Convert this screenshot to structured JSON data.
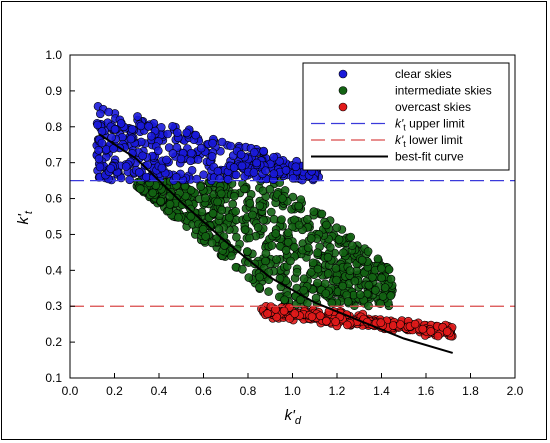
{
  "chart_data": {
    "type": "scatter",
    "xlabel_main": "k'",
    "xlabel_sub": "d",
    "ylabel_main": "k'",
    "ylabel_sub": "t",
    "xlim": [
      0.0,
      2.0
    ],
    "ylim": [
      0.1,
      1.0
    ],
    "x_ticks": [
      "0.0",
      "0.2",
      "0.4",
      "0.6",
      "0.8",
      "1.0",
      "1.2",
      "1.4",
      "1.6",
      "1.8",
      "2.0"
    ],
    "y_ticks": [
      "0.1",
      "0.2",
      "0.3",
      "0.4",
      "0.5",
      "0.6",
      "0.7",
      "0.8",
      "0.9",
      "1.0"
    ],
    "grid": false,
    "legend_position": "top-right",
    "series": [
      {
        "name": "clear skies",
        "color": "#1a1ad9",
        "region": {
          "y_range": [
            0.65,
            0.89
          ],
          "x_range": [
            0.12,
            1.12
          ]
        },
        "points_sample": [
          [
            0.15,
            0.85
          ],
          [
            0.2,
            0.82
          ],
          [
            0.3,
            0.86
          ],
          [
            0.4,
            0.78
          ],
          [
            0.5,
            0.76
          ],
          [
            0.6,
            0.74
          ],
          [
            0.7,
            0.72
          ],
          [
            0.8,
            0.7
          ],
          [
            0.9,
            0.69
          ],
          [
            1.0,
            0.68
          ],
          [
            1.1,
            0.66
          ]
        ]
      },
      {
        "name": "intermediate skies",
        "color": "#136313",
        "region": {
          "y_range": [
            0.3,
            0.65
          ],
          "x_range": [
            0.3,
            1.45
          ]
        },
        "points_sample": [
          [
            0.35,
            0.62
          ],
          [
            0.5,
            0.55
          ],
          [
            0.6,
            0.48
          ],
          [
            0.7,
            0.42
          ],
          [
            0.8,
            0.36
          ],
          [
            1.0,
            0.58
          ],
          [
            1.1,
            0.5
          ],
          [
            1.2,
            0.45
          ],
          [
            1.3,
            0.52
          ],
          [
            1.4,
            0.38
          ]
        ]
      },
      {
        "name": "overcast skies",
        "color": "#e21b1b",
        "region": {
          "y_range": [
            0.19,
            0.3
          ],
          "x_range": [
            0.85,
            1.72
          ]
        },
        "points_sample": [
          [
            0.9,
            0.29
          ],
          [
            1.0,
            0.27
          ],
          [
            1.1,
            0.26
          ],
          [
            1.2,
            0.25
          ],
          [
            1.3,
            0.26
          ],
          [
            1.4,
            0.24
          ],
          [
            1.5,
            0.23
          ],
          [
            1.6,
            0.22
          ],
          [
            1.7,
            0.24
          ]
        ]
      }
    ],
    "reference_lines": [
      {
        "name": "upper limit",
        "name_main": "k'",
        "name_sub": "t",
        "y": 0.65,
        "color": "#3a3adb",
        "style": "dashed"
      },
      {
        "name": "lower limit",
        "name_main": "k'",
        "name_sub": "t",
        "y": 0.3,
        "color": "#d94a4a",
        "style": "dashed"
      }
    ],
    "best_fit": {
      "name": "best-fit curve",
      "color": "#000000",
      "points": [
        [
          0.13,
          0.78
        ],
        [
          0.3,
          0.71
        ],
        [
          0.5,
          0.59
        ],
        [
          0.7,
          0.48
        ],
        [
          0.9,
          0.38
        ],
        [
          1.1,
          0.31
        ],
        [
          1.3,
          0.26
        ],
        [
          1.5,
          0.21
        ],
        [
          1.72,
          0.17
        ]
      ]
    }
  }
}
